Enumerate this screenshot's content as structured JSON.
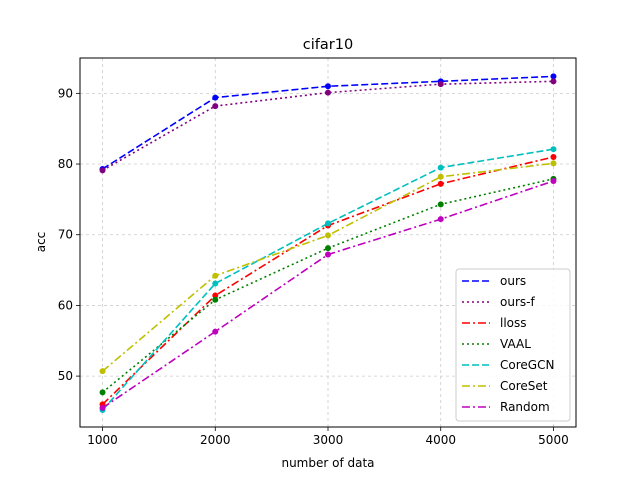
{
  "chart_data": {
    "type": "line",
    "title": "cifar10",
    "xlabel": "number of data",
    "ylabel": "acc",
    "x": [
      1000,
      2000,
      3000,
      4000,
      5000
    ],
    "x_ticks": [
      "1000",
      "2000",
      "3000",
      "4000",
      "5000"
    ],
    "y_ticks": [
      50,
      60,
      70,
      80,
      90
    ],
    "xlim": [
      800,
      5200
    ],
    "ylim": [
      42.8,
      95.0
    ],
    "grid": true,
    "legend_position": "lower-right",
    "series": [
      {
        "name": "ours",
        "values": [
          79.3,
          89.4,
          91.0,
          91.7,
          92.4
        ],
        "color": "#0000ff",
        "dash": "dashed"
      },
      {
        "name": "ours-f",
        "values": [
          79.1,
          88.2,
          90.1,
          91.3,
          91.7
        ],
        "color": "#800080",
        "dash": "dotted"
      },
      {
        "name": "lloss",
        "values": [
          46.0,
          61.4,
          71.3,
          77.2,
          81.0
        ],
        "color": "#ff0000",
        "dash": "dashdot"
      },
      {
        "name": "VAAL",
        "values": [
          47.7,
          60.8,
          68.1,
          74.3,
          77.9
        ],
        "color": "#008000",
        "dash": "dotted"
      },
      {
        "name": "CoreGCN",
        "values": [
          45.2,
          63.1,
          71.6,
          79.5,
          82.1
        ],
        "color": "#00bfbf",
        "dash": "dashed"
      },
      {
        "name": "CoreSet",
        "values": [
          50.7,
          64.2,
          69.9,
          78.2,
          80.1
        ],
        "color": "#bfbf00",
        "dash": "dashdot"
      },
      {
        "name": "Random",
        "values": [
          45.5,
          56.3,
          67.2,
          72.2,
          77.6
        ],
        "color": "#bf00bf",
        "dash": "dashdot"
      }
    ]
  }
}
